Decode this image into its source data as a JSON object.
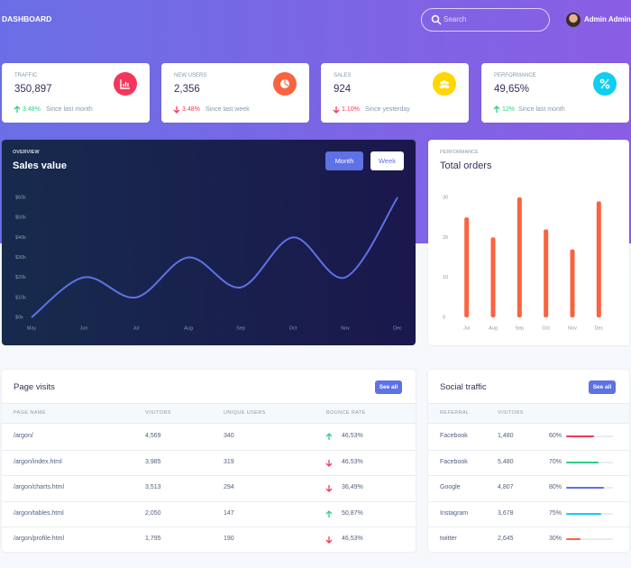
{
  "header": {
    "title": "DASHBOARD",
    "search_placeholder": "Search",
    "user": "Admin Admin"
  },
  "stats": [
    {
      "label": "TRAFFIC",
      "value": "350,897",
      "change": "3.48%",
      "direction": "up",
      "note": "Since last month",
      "icon": "chart",
      "icon_color": "#f5365c"
    },
    {
      "label": "NEW USERS",
      "value": "2,356",
      "change": "3.48%",
      "direction": "down",
      "note": "Since last week",
      "icon": "pie",
      "icon_color": "#fb6340"
    },
    {
      "label": "SALES",
      "value": "924",
      "change": "1.10%",
      "direction": "down",
      "note": "Since yesterday",
      "icon": "users",
      "icon_color": "#ffd600"
    },
    {
      "label": "PERFORMANCE",
      "value": "49,65%",
      "change": "12%",
      "direction": "up",
      "note": "Since last month",
      "icon": "percent",
      "icon_color": "#11cdef"
    }
  ],
  "sales": {
    "overline": "OVERVIEW",
    "title": "Sales value",
    "buttons": [
      "Month",
      "Week"
    ],
    "chart_data": {
      "type": "line",
      "categories": [
        "May",
        "Jun",
        "Jul",
        "Aug",
        "Sep",
        "Oct",
        "Nov",
        "Dec"
      ],
      "values": [
        0,
        20,
        10,
        30,
        15,
        40,
        20,
        60
      ],
      "color": "#5e72e4",
      "ylim": [
        0,
        60
      ],
      "yticks": [
        {
          "value": 0,
          "label": "$0k"
        },
        {
          "value": 10,
          "label": "$10k"
        },
        {
          "value": 20,
          "label": "$20k"
        },
        {
          "value": 30,
          "label": "$30k"
        },
        {
          "value": 40,
          "label": "$40k"
        },
        {
          "value": 50,
          "label": "$50k"
        },
        {
          "value": 60,
          "label": "$60k"
        }
      ]
    }
  },
  "orders": {
    "overline": "PERFORMANCE",
    "title": "Total orders",
    "chart_data": {
      "type": "bar",
      "categories": [
        "Jul",
        "Aug",
        "Sep",
        "Oct",
        "Nov",
        "Dec"
      ],
      "values": [
        25,
        20,
        30,
        22,
        17,
        29
      ],
      "color": "#fb6340",
      "ylim": [
        0,
        30
      ],
      "yticks": [
        0,
        10,
        20,
        30
      ]
    }
  },
  "page_visits": {
    "title": "Page visits",
    "button": "See all",
    "columns": [
      "PAGE NAME",
      "VISITORS",
      "UNIQUE USERS",
      "BOUNCE RATE"
    ],
    "rows": [
      [
        "/argon/",
        "4,569",
        "340",
        "46,53%"
      ],
      [
        "/argon/index.html",
        "3,985",
        "319",
        "46,53%"
      ],
      [
        "/argon/charts.html",
        "3,513",
        "294",
        "36,49%"
      ],
      [
        "/argon/tables.html",
        "2,050",
        "147",
        "50,87%"
      ],
      [
        "/argon/profile.html",
        "1,795",
        "190",
        "46,53%"
      ]
    ],
    "directions": [
      "up",
      "down",
      "down",
      "up",
      "down"
    ]
  },
  "social_traffic": {
    "title": "Social traffic",
    "button": "See all",
    "columns": [
      "REFERRAL",
      "VISITORS"
    ],
    "rows": [
      {
        "referral": "Facebook",
        "visitors": "1,480",
        "percent": 60,
        "percent_label": "60%",
        "color": "#f5365c"
      },
      {
        "referral": "Facebook",
        "visitors": "5,480",
        "percent": 70,
        "percent_label": "70%",
        "color": "#2dce89"
      },
      {
        "referral": "Google",
        "visitors": "4,807",
        "percent": 80,
        "percent_label": "80%",
        "color": "#5e72e4"
      },
      {
        "referral": "Instagram",
        "visitors": "3,678",
        "percent": 75,
        "percent_label": "75%",
        "color": "#11cdef"
      },
      {
        "referral": "twitter",
        "visitors": "2,645",
        "percent": 30,
        "percent_label": "30%",
        "color": "#fb6340"
      }
    ]
  }
}
